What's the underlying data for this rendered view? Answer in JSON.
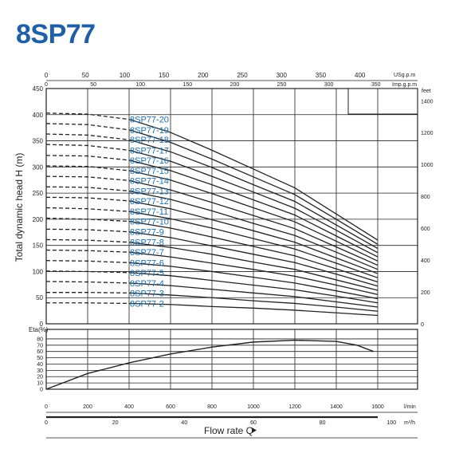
{
  "title": "8SP77",
  "chart_data": [
    {
      "type": "line",
      "ylabel": "Total dynamic head H (m)",
      "ylim": [
        0,
        450
      ],
      "yticks": [
        0,
        50,
        100,
        150,
        200,
        250,
        300,
        350,
        400,
        450
      ],
      "secondary_y": {
        "unit": "feet",
        "ticks": [
          0,
          200,
          400,
          600,
          800,
          1000,
          1200,
          1400
        ]
      },
      "top_axes": [
        {
          "unit": "USg.p.m",
          "ticks": [
            0,
            50,
            100,
            150,
            200,
            250,
            300,
            350,
            400
          ]
        },
        {
          "unit": "Imp.g.p.m",
          "ticks": [
            0,
            50,
            100,
            150,
            200,
            250,
            300,
            350
          ]
        }
      ],
      "x_unit": "l/min",
      "xlim": [
        0,
        1600
      ],
      "dashed_until_x": 400,
      "series": [
        {
          "name": "8SP77-20",
          "x": [
            0,
            200,
            400,
            600,
            800,
            1000,
            1200,
            1400,
            1600
          ],
          "y": [
            403,
            401,
            391,
            366,
            332,
            296,
            260,
            210,
            160
          ]
        },
        {
          "name": "8SP77-19",
          "x": [
            0,
            200,
            400,
            600,
            800,
            1000,
            1200,
            1400,
            1600
          ],
          "y": [
            383,
            381,
            371,
            347,
            315,
            281,
            247,
            200,
            152
          ]
        },
        {
          "name": "8SP77-18",
          "x": [
            0,
            200,
            400,
            600,
            800,
            1000,
            1200,
            1400,
            1600
          ],
          "y": [
            363,
            361,
            352,
            329,
            299,
            266,
            234,
            189,
            144
          ]
        },
        {
          "name": "8SP77-17",
          "x": [
            0,
            200,
            400,
            600,
            800,
            1000,
            1200,
            1400,
            1600
          ],
          "y": [
            343,
            341,
            332,
            311,
            282,
            252,
            221,
            179,
            136
          ]
        },
        {
          "name": "8SP77-16",
          "x": [
            0,
            200,
            400,
            600,
            800,
            1000,
            1200,
            1400,
            1600
          ],
          "y": [
            322,
            321,
            313,
            293,
            266,
            237,
            208,
            168,
            128
          ]
        },
        {
          "name": "8SP77-15",
          "x": [
            0,
            200,
            400,
            600,
            800,
            1000,
            1200,
            1400,
            1600
          ],
          "y": [
            302,
            301,
            293,
            275,
            249,
            222,
            195,
            158,
            120
          ]
        },
        {
          "name": "8SP77-14",
          "x": [
            0,
            200,
            400,
            600,
            800,
            1000,
            1200,
            1400,
            1600
          ],
          "y": [
            282,
            281,
            274,
            256,
            232,
            207,
            182,
            147,
            112
          ]
        },
        {
          "name": "8SP77-13",
          "x": [
            0,
            200,
            400,
            600,
            800,
            1000,
            1200,
            1400,
            1600
          ],
          "y": [
            262,
            261,
            254,
            238,
            216,
            192,
            169,
            137,
            104
          ]
        },
        {
          "name": "8SP77-12",
          "x": [
            0,
            200,
            400,
            600,
            800,
            1000,
            1200,
            1400,
            1600
          ],
          "y": [
            242,
            241,
            235,
            220,
            199,
            178,
            156,
            126,
            96
          ]
        },
        {
          "name": "8SP77-11",
          "x": [
            0,
            200,
            400,
            600,
            800,
            1000,
            1200,
            1400,
            1600
          ],
          "y": [
            222,
            220,
            215,
            201,
            183,
            163,
            143,
            116,
            88
          ]
        },
        {
          "name": "8SP77-10",
          "x": [
            0,
            200,
            400,
            600,
            800,
            1000,
            1200,
            1400,
            1600
          ],
          "y": [
            202,
            200,
            196,
            183,
            166,
            148,
            130,
            105,
            80
          ]
        },
        {
          "name": "8SP77-9",
          "x": [
            0,
            200,
            400,
            600,
            800,
            1000,
            1200,
            1400,
            1600
          ],
          "y": [
            181,
            180,
            176,
            165,
            149,
            133,
            117,
            95,
            72
          ]
        },
        {
          "name": "8SP77-8",
          "x": [
            0,
            200,
            400,
            600,
            800,
            1000,
            1200,
            1400,
            1600
          ],
          "y": [
            161,
            160,
            156,
            146,
            133,
            118,
            104,
            84,
            64
          ]
        },
        {
          "name": "8SP77-7",
          "x": [
            0,
            200,
            400,
            600,
            800,
            1000,
            1200,
            1400,
            1600
          ],
          "y": [
            141,
            140,
            137,
            128,
            116,
            104,
            91,
            74,
            56
          ]
        },
        {
          "name": "8SP77-6",
          "x": [
            0,
            200,
            400,
            600,
            800,
            1000,
            1200,
            1400,
            1600
          ],
          "y": [
            121,
            120,
            117,
            110,
            100,
            89,
            78,
            63,
            48
          ]
        },
        {
          "name": "8SP77-5",
          "x": [
            0,
            200,
            400,
            600,
            800,
            1000,
            1200,
            1400,
            1600
          ],
          "y": [
            101,
            100,
            98,
            92,
            83,
            74,
            65,
            53,
            40
          ]
        },
        {
          "name": "8SP77-4",
          "x": [
            0,
            200,
            400,
            600,
            800,
            1000,
            1200,
            1400,
            1600
          ],
          "y": [
            81,
            80,
            78,
            73,
            66,
            59,
            52,
            42,
            32
          ]
        },
        {
          "name": "8SP77-3",
          "x": [
            0,
            200,
            400,
            600,
            800,
            1000,
            1200,
            1400,
            1600
          ],
          "y": [
            60,
            60,
            59,
            55,
            50,
            44,
            39,
            32,
            24
          ]
        },
        {
          "name": "8SP77-2",
          "x": [
            0,
            200,
            400,
            600,
            800,
            1000,
            1200,
            1400,
            1600
          ],
          "y": [
            40,
            40,
            39,
            37,
            33,
            30,
            26,
            21,
            16
          ]
        }
      ]
    },
    {
      "type": "line",
      "ylabel": "Eta(%)",
      "ylim": [
        0,
        90
      ],
      "yticks": [
        0,
        10,
        20,
        30,
        40,
        50,
        60,
        70,
        80
      ],
      "xlim": [
        0,
        1600
      ],
      "xticks": [
        0,
        200,
        400,
        600,
        800,
        1000,
        1200,
        1400,
        1600
      ],
      "x_unit": "l/min",
      "x2_unit": "m³/h",
      "x2_ticks": [
        0,
        20,
        40,
        60,
        80,
        100
      ],
      "xlabel": "Flow rate Q",
      "series": [
        {
          "x": [
            0,
            200,
            400,
            600,
            800,
            1000,
            1200,
            1400,
            1500,
            1580
          ],
          "y": [
            0,
            25,
            42,
            56,
            67,
            75,
            78,
            76,
            70,
            60
          ]
        }
      ]
    }
  ]
}
